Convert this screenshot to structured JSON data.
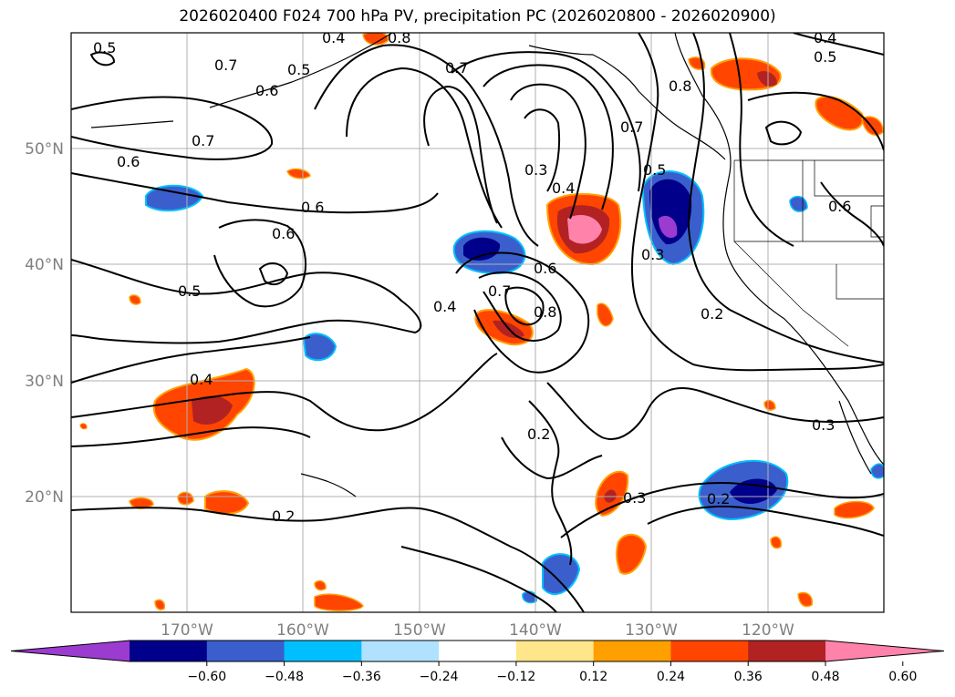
{
  "title": "2026020400 F024 700 hPa PV, precipitation PC (2026020800 - 2026020900)",
  "lon_labels": [
    "170°W",
    "160°W",
    "150°W",
    "140°W",
    "130°W",
    "120°W"
  ],
  "lat_labels": [
    "50°N",
    "40°N",
    "30°N",
    "20°N"
  ],
  "colorbar": {
    "colors": [
      "#9b3bcf",
      "#00008b",
      "#3a5fcd",
      "#00bfff",
      "#b0e2ff",
      "#ffffff",
      "#ffe68a",
      "#ffa000",
      "#ff4500",
      "#b22222",
      "#ff82ab"
    ],
    "ticks": [
      "−0.60",
      "−0.48",
      "−0.36",
      "−0.24",
      "−0.12",
      "0.12",
      "0.24",
      "0.36",
      "0.48",
      "0.60"
    ]
  },
  "contour_labels": [
    {
      "text": "0.5"
    },
    {
      "text": "0.4"
    },
    {
      "text": "0.8"
    },
    {
      "text": "0.5"
    },
    {
      "text": "0.7"
    },
    {
      "text": "0.6"
    },
    {
      "text": "0.7"
    },
    {
      "text": "0.7"
    },
    {
      "text": "0.6"
    },
    {
      "text": "0.6"
    },
    {
      "text": "0.6"
    },
    {
      "text": "0.5"
    },
    {
      "text": "0.3"
    },
    {
      "text": "0.4"
    },
    {
      "text": "0.7"
    },
    {
      "text": "0.8"
    },
    {
      "text": "0.5"
    },
    {
      "text": "0.3"
    },
    {
      "text": "0.6"
    },
    {
      "text": "0.7"
    },
    {
      "text": "0.8"
    },
    {
      "text": "0.4"
    },
    {
      "text": "0.2"
    },
    {
      "text": "0.4"
    },
    {
      "text": "0.4"
    },
    {
      "text": "0.5"
    },
    {
      "text": "0.6"
    },
    {
      "text": "0.3"
    },
    {
      "text": "0.2"
    },
    {
      "text": "0.3"
    },
    {
      "text": "0.2"
    },
    {
      "text": "0.2"
    }
  ]
}
